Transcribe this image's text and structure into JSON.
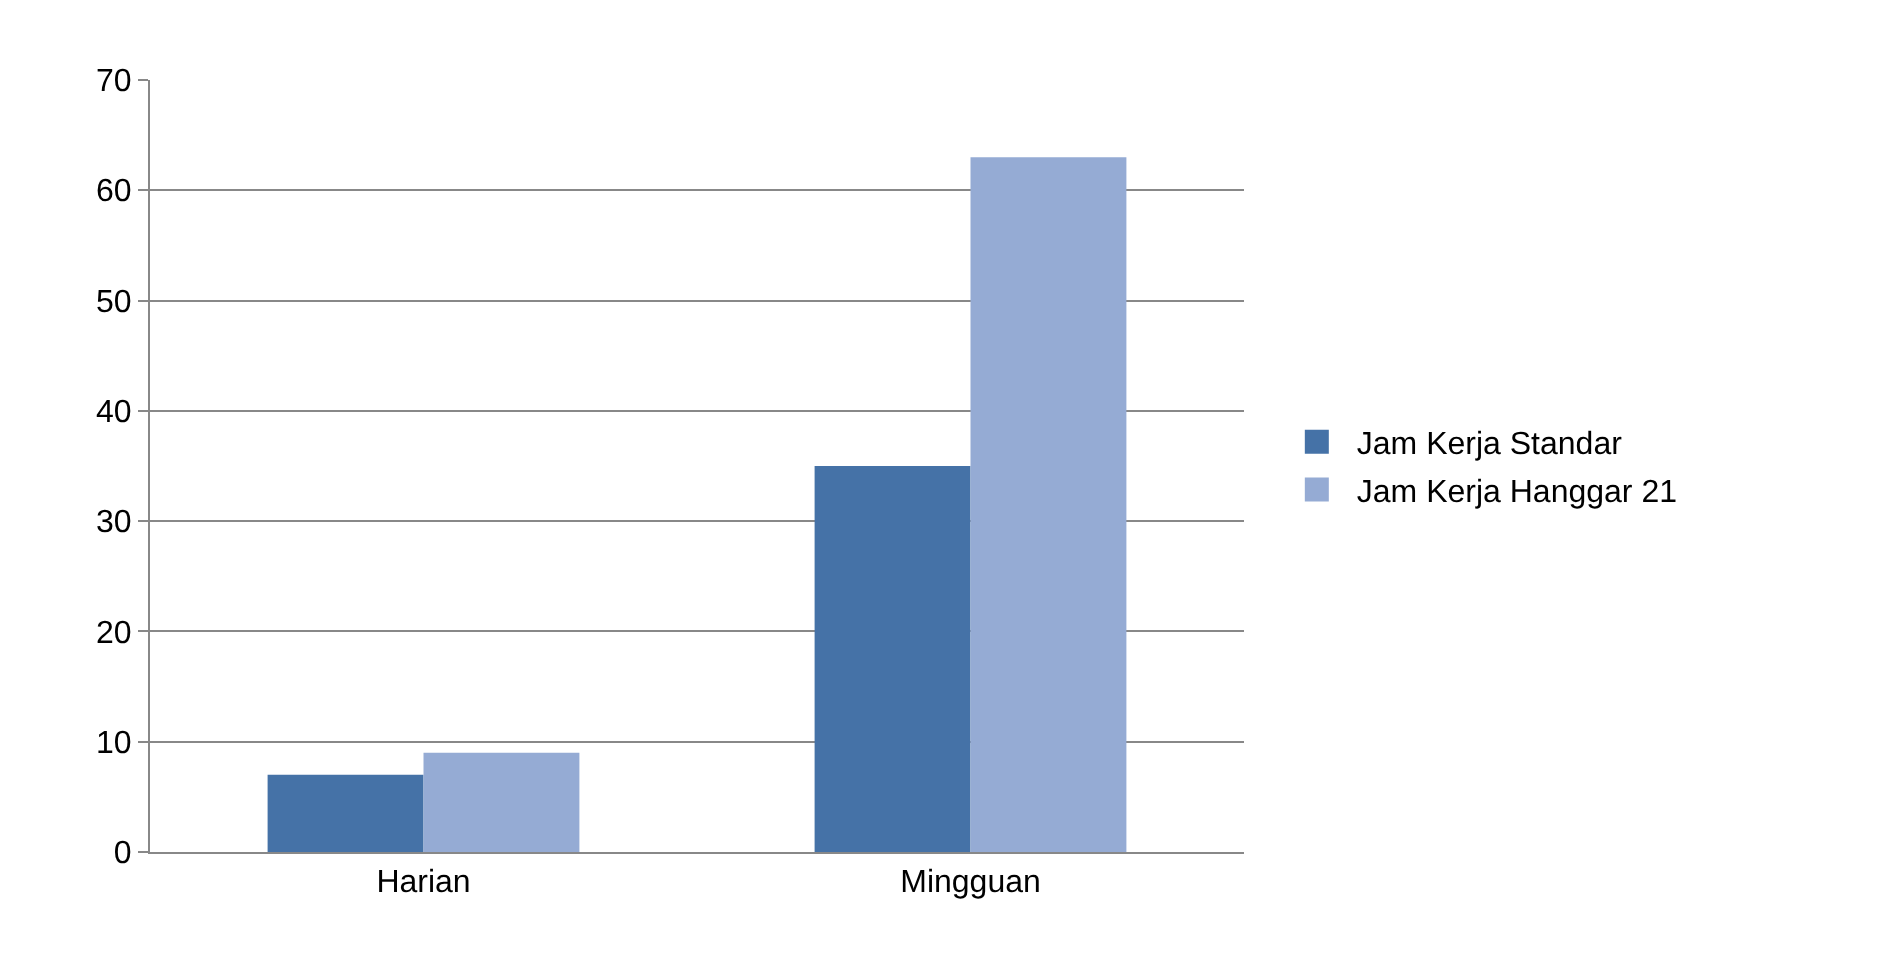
{
  "chart_data": {
    "type": "bar",
    "categories": [
      "Harian",
      "Mingguan"
    ],
    "series": [
      {
        "name": "Jam Kerja Standar",
        "color": "#4572a7",
        "values": [
          7,
          35
        ]
      },
      {
        "name": "Jam Kerja Hanggar 21",
        "color": "#95abd4",
        "values": [
          9,
          63
        ]
      }
    ],
    "ylim": [
      0,
      70
    ],
    "yticks": [
      0,
      10,
      20,
      30,
      40,
      50,
      60,
      70
    ],
    "grid": "y",
    "legend": "right"
  }
}
